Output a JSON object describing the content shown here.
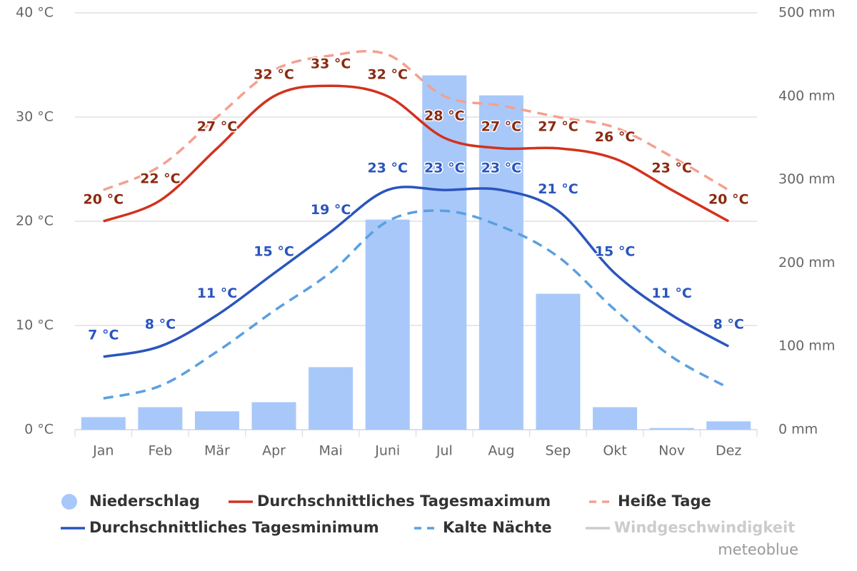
{
  "chart_data": {
    "type": "combo",
    "categories": [
      "Jan",
      "Feb",
      "Mär",
      "Apr",
      "Mai",
      "Juni",
      "Jul",
      "Aug",
      "Sep",
      "Okt",
      "Nov",
      "Dez"
    ],
    "ylim": [
      0,
      40
    ],
    "yticks": [
      {
        "value": 0,
        "label": "0 °C"
      },
      {
        "value": 10,
        "label": "10 °C"
      },
      {
        "value": 20,
        "label": "20 °C"
      },
      {
        "value": 30,
        "label": "30 °C"
      },
      {
        "value": 40,
        "label": "40 °C"
      }
    ],
    "y2lim": [
      0,
      500
    ],
    "y2ticks": [
      {
        "value": 0,
        "label": "0 mm"
      },
      {
        "value": 100,
        "label": "100 mm"
      },
      {
        "value": 200,
        "label": "200 mm"
      },
      {
        "value": 300,
        "label": "300 mm"
      },
      {
        "value": 400,
        "label": "400 mm"
      },
      {
        "value": 500,
        "label": "500 mm"
      }
    ],
    "grid": true,
    "series": [
      {
        "name": "Niederschlag",
        "type": "bar",
        "axis": "y2",
        "color": "#a8c8fa",
        "values": [
          15,
          27,
          22,
          33,
          75,
          252,
          425,
          401,
          163,
          27,
          2,
          10
        ]
      },
      {
        "name": "Durchschnittliches Tagesmaximum",
        "type": "line",
        "color": "#d2321e",
        "label_color": "#8b2a10",
        "values": [
          20,
          22,
          27,
          32,
          33,
          32,
          28,
          27,
          27,
          26,
          23,
          20
        ],
        "value_labels": [
          "20 °C",
          "22 °C",
          "27 °C",
          "32 °C",
          "33 °C",
          "32 °C",
          "28 °C",
          "27 °C",
          "27 °C",
          "26 °C",
          "23 °C",
          "20 °C"
        ]
      },
      {
        "name": "Heiße Tage",
        "type": "line",
        "dash": true,
        "color": "#f4a090",
        "values": [
          23,
          25.3,
          30,
          34.5,
          35.9,
          36,
          32,
          31.1,
          30,
          29,
          26.2,
          23
        ]
      },
      {
        "name": "Durchschnittliches Tagesminimum",
        "type": "line",
        "color": "#2a55be",
        "label_color": "#2a55be",
        "values": [
          7,
          8,
          11,
          15,
          19,
          23,
          23,
          23,
          21,
          15,
          11,
          8
        ],
        "value_labels": [
          "7 °C",
          "8 °C",
          "11 °C",
          "15 °C",
          "19 °C",
          "23 °C",
          "23 °C",
          "23 °C",
          "21 °C",
          "15 °C",
          "11 °C",
          "8 °C"
        ]
      },
      {
        "name": "Kalte Nächte",
        "type": "line",
        "dash": true,
        "color": "#5aa0e0",
        "values": [
          3,
          4.2,
          7.5,
          11.4,
          15.1,
          20,
          21,
          19.5,
          16.6,
          11.5,
          7,
          4
        ]
      },
      {
        "name": "Windgeschwindigkeit",
        "type": "line",
        "visible": false,
        "color": "#cccccc"
      }
    ],
    "credit": "meteoblue"
  }
}
